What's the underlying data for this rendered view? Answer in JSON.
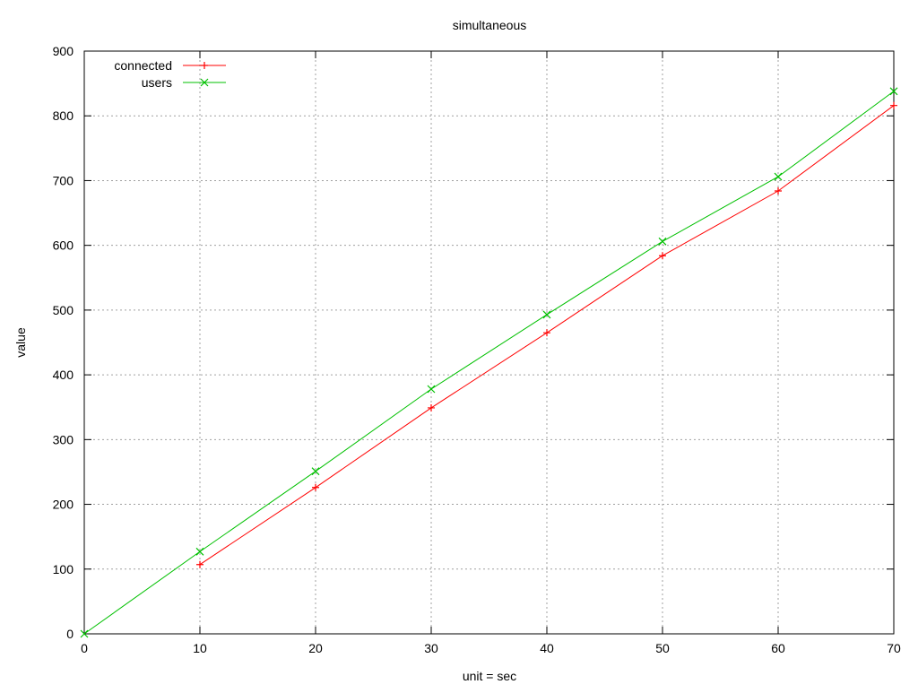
{
  "chart_data": {
    "type": "line",
    "title": "simultaneous",
    "xlabel": "unit = sec",
    "ylabel": "value",
    "xlim": [
      0,
      70
    ],
    "ylim": [
      0,
      900
    ],
    "xticks": [
      0,
      10,
      20,
      30,
      40,
      50,
      60,
      70
    ],
    "yticks": [
      0,
      100,
      200,
      300,
      400,
      500,
      600,
      700,
      800,
      900
    ],
    "grid": true,
    "legend_position": "top-left",
    "series": [
      {
        "name": "connected",
        "color": "#ff0000",
        "marker": "plus",
        "x": [
          10,
          20,
          30,
          40,
          50,
          60,
          70
        ],
        "y": [
          107,
          226,
          349,
          465,
          584,
          684,
          816
        ]
      },
      {
        "name": "users",
        "color": "#00c000",
        "marker": "cross",
        "x": [
          0,
          10,
          20,
          30,
          40,
          50,
          60,
          70
        ],
        "y": [
          0,
          127,
          251,
          378,
          493,
          606,
          706,
          838
        ]
      }
    ]
  }
}
